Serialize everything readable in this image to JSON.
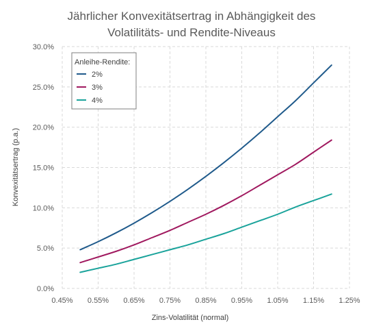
{
  "chart_data": {
    "type": "line",
    "title_lines": [
      "Jährlicher Konvexitätsertrag in Abhängigkeit des",
      "Volatilitäts- und Rendite-Niveaus"
    ],
    "xlabel": "Zins-Volatilität (normal)",
    "ylabel": "Konvexitätsertrag (p.a.)",
    "xlim": [
      0.45,
      1.25
    ],
    "ylim": [
      0,
      30
    ],
    "x_ticks": [
      "0.45%",
      "0.55%",
      "0.65%",
      "0.75%",
      "0.85%",
      "0.95%",
      "1.05%",
      "1.15%",
      "1.25%"
    ],
    "y_ticks": [
      "0.0%",
      "5.0%",
      "10.0%",
      "15.0%",
      "20.0%",
      "25.0%",
      "30.0%"
    ],
    "grid": true,
    "legend_title": "Anleihe-Rendite:",
    "legend_position": "top-left",
    "x": [
      0.5,
      0.55,
      0.6,
      0.65,
      0.7,
      0.75,
      0.8,
      0.85,
      0.9,
      0.95,
      1.0,
      1.05,
      1.1,
      1.15,
      1.2
    ],
    "series": [
      {
        "name": "2%",
        "color": "#1f5a8b",
        "values": [
          4.8,
          5.8,
          6.9,
          8.1,
          9.4,
          10.8,
          12.3,
          13.9,
          15.6,
          17.4,
          19.3,
          21.3,
          23.3,
          25.5,
          27.7
        ]
      },
      {
        "name": "3%",
        "color": "#a0195f",
        "values": [
          3.2,
          3.9,
          4.6,
          5.4,
          6.3,
          7.2,
          8.2,
          9.2,
          10.3,
          11.5,
          12.8,
          14.1,
          15.4,
          16.9,
          18.4
        ]
      },
      {
        "name": "4%",
        "color": "#1aa39b",
        "values": [
          2.0,
          2.5,
          3.0,
          3.6,
          4.2,
          4.8,
          5.4,
          6.1,
          6.8,
          7.6,
          8.4,
          9.2,
          10.1,
          10.9,
          11.7
        ]
      }
    ]
  }
}
